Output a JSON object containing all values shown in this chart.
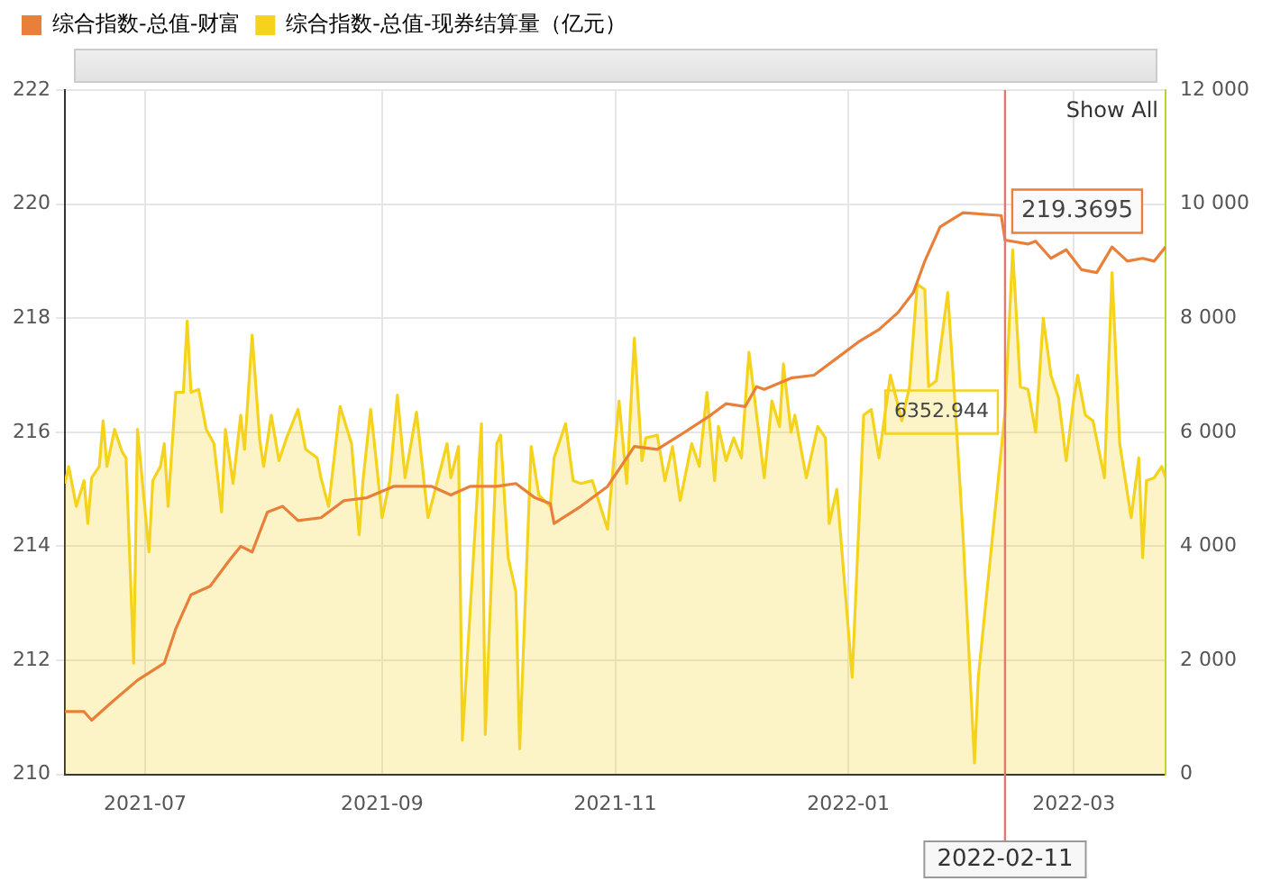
{
  "chart_data": {
    "type": "line",
    "legend": "top left",
    "grid": true,
    "marker": "none",
    "line_style": "solid",
    "xlim": [
      "2021-06-10",
      "2022-03-25"
    ],
    "xticks": [
      {
        "value": "2021-07",
        "label": "2021-07"
      },
      {
        "value": "2021-09",
        "label": "2021-09"
      },
      {
        "value": "2021-11",
        "label": "2021-11"
      },
      {
        "value": "2022-01",
        "label": "2022-01"
      },
      {
        "value": "2022-03",
        "label": "2022-03"
      }
    ],
    "ylim": [
      210,
      222
    ],
    "yticks": [
      210,
      212,
      214,
      216,
      218,
      220,
      222
    ],
    "y2lim": [
      0,
      12000
    ],
    "y2ticks": [
      0,
      {
        "value": 2000,
        "label": "2 000"
      },
      {
        "value": 4000,
        "label": "4 000"
      },
      {
        "value": 6000,
        "label": "6 000"
      },
      {
        "value": 8000,
        "label": "8 000"
      },
      {
        "value": 10000,
        "label": "10 000"
      },
      {
        "value": 12000,
        "label": "12 000"
      }
    ],
    "ref_lines": [
      {
        "axis": "x",
        "value": "2022-02-11",
        "label": "2022-02-11",
        "color": "#e07a6e"
      }
    ],
    "annotations": [
      "Show All"
    ],
    "series": [
      {
        "name": "综合指数-总值-现券结算量（亿元）",
        "type": "area",
        "axis": "y2",
        "color": "#f5d31c",
        "x": [
          "2021-06-10",
          "2021-06-11",
          "2021-06-13",
          "2021-06-15",
          "2021-06-16",
          "2021-06-17",
          "2021-06-19",
          "2021-06-20",
          "2021-06-21",
          "2021-06-23",
          "2021-06-25",
          "2021-06-26",
          "2021-06-28",
          "2021-06-29",
          "2021-07-02",
          "2021-07-03",
          "2021-07-05",
          "2021-07-06",
          "2021-07-07",
          "2021-07-09",
          "2021-07-11",
          "2021-07-12",
          "2021-07-13",
          "2021-07-15",
          "2021-07-17",
          "2021-07-19",
          "2021-07-21",
          "2021-07-22",
          "2021-07-24",
          "2021-07-26",
          "2021-07-27",
          "2021-07-29",
          "2021-07-31",
          "2021-08-01",
          "2021-08-03",
          "2021-08-05",
          "2021-08-07",
          "2021-08-10",
          "2021-08-12",
          "2021-08-15",
          "2021-08-16",
          "2021-08-18",
          "2021-08-21",
          "2021-08-24",
          "2021-08-26",
          "2021-08-27",
          "2021-08-29",
          "2021-08-30",
          "2021-09-01",
          "2021-09-03",
          "2021-09-05",
          "2021-09-07",
          "2021-09-10",
          "2021-09-13",
          "2021-09-18",
          "2021-09-19",
          "2021-09-21",
          "2021-09-22",
          "2021-09-27",
          "2021-09-28",
          "2021-10-01",
          "2021-10-02",
          "2021-10-04",
          "2021-10-06",
          "2021-10-07",
          "2021-10-10",
          "2021-10-12",
          "2021-10-15",
          "2021-10-16",
          "2021-10-19",
          "2021-10-21",
          "2021-10-23",
          "2021-10-26",
          "2021-10-30",
          "2021-11-02",
          "2021-11-04",
          "2021-11-06",
          "2021-11-08",
          "2021-11-09",
          "2021-11-12",
          "2021-11-14",
          "2021-11-16",
          "2021-11-18",
          "2021-11-21",
          "2021-11-23",
          "2021-11-25",
          "2021-11-27",
          "2021-11-28",
          "2021-11-30",
          "2021-12-02",
          "2021-12-04",
          "2021-12-06",
          "2021-12-10",
          "2021-12-12",
          "2021-12-14",
          "2021-12-15",
          "2021-12-17",
          "2021-12-18",
          "2021-12-21",
          "2021-12-24",
          "2021-12-26",
          "2021-12-27",
          "2021-12-29",
          "2022-01-02",
          "2022-01-05",
          "2022-01-07",
          "2022-01-09",
          "2022-01-12",
          "2022-01-15",
          "2022-01-17",
          "2022-01-19",
          "2022-01-21",
          "2022-01-22",
          "2022-01-24",
          "2022-01-27",
          "2022-01-29",
          "2022-01-31",
          "2022-02-03",
          "2022-02-04",
          "2022-02-11",
          "2022-02-13",
          "2022-02-15",
          "2022-02-17",
          "2022-02-19",
          "2022-02-21",
          "2022-02-23",
          "2022-02-25",
          "2022-02-27",
          "2022-03-01",
          "2022-03-02",
          "2022-03-04",
          "2022-03-06",
          "2022-03-09",
          "2022-03-11",
          "2022-03-13",
          "2022-03-16",
          "2022-03-18",
          "2022-03-19",
          "2022-03-20",
          "2022-03-22",
          "2022-03-24",
          "2022-03-25"
        ],
        "values": [
          5100,
          5400,
          4700,
          5150,
          4400,
          5200,
          5400,
          6200,
          5400,
          6050,
          5650,
          5550,
          1950,
          6050,
          3900,
          5150,
          5400,
          5800,
          4700,
          6700,
          6700,
          7950,
          6700,
          6750,
          6050,
          5800,
          4600,
          6050,
          5100,
          6300,
          5700,
          7700,
          5850,
          5400,
          6300,
          5500,
          5900,
          6400,
          5700,
          5550,
          5200,
          4700,
          6450,
          5800,
          4200,
          5150,
          6400,
          5800,
          4500,
          5150,
          6650,
          5200,
          6350,
          4500,
          5800,
          5200,
          5750,
          600,
          6150,
          700,
          5800,
          5950,
          3800,
          3200,
          450,
          5750,
          4900,
          4700,
          5550,
          6150,
          5150,
          5100,
          5150,
          4300,
          6550,
          5100,
          7650,
          5500,
          5900,
          5950,
          5150,
          5750,
          4800,
          5800,
          5400,
          6700,
          5150,
          6100,
          5500,
          5900,
          5550,
          7400,
          5200,
          6550,
          6100,
          7200,
          6000,
          6300,
          5200,
          6100,
          5900,
          4400,
          5000,
          1700,
          6300,
          6400,
          5550,
          7000,
          6200,
          6800,
          8600,
          8500,
          6800,
          6900,
          8450,
          6400,
          4200,
          200,
          1700,
          6352.944,
          9200,
          6800,
          6750,
          6000,
          8000,
          7000,
          6600,
          5500,
          6600,
          7000,
          6300,
          6200,
          5200,
          8800,
          5800,
          4500,
          5550,
          3800,
          5150,
          5200,
          5400,
          5200
        ],
        "value_labels": [
          null,
          null,
          null,
          null,
          null,
          null,
          null,
          null,
          null,
          null,
          null,
          null,
          null,
          null,
          null,
          null,
          null,
          null,
          null,
          null,
          null,
          null,
          null,
          null,
          null,
          null,
          null,
          null,
          null,
          null,
          null,
          null,
          null,
          null,
          null,
          null,
          null,
          null,
          null,
          null,
          null,
          null,
          null,
          null,
          null,
          null,
          null,
          null,
          null,
          null,
          null,
          null,
          null,
          null,
          null,
          null,
          null,
          null,
          null,
          null,
          null,
          null,
          null,
          null,
          null,
          null,
          null,
          null,
          null,
          null,
          null,
          null,
          null,
          null,
          null,
          null,
          null,
          null,
          null,
          null,
          null,
          null,
          null,
          null,
          null,
          null,
          null,
          null,
          null,
          null,
          null,
          null,
          null,
          null,
          null,
          null,
          null,
          null,
          null,
          null,
          null,
          null,
          null,
          null,
          null,
          null,
          null,
          null,
          null,
          null,
          null,
          null,
          null,
          null,
          null,
          null,
          null,
          null,
          null,
          "6352.944",
          null,
          null,
          null,
          null,
          null,
          null,
          null,
          null,
          null,
          null,
          null,
          null,
          null,
          null,
          null,
          null,
          null,
          null,
          null,
          null,
          null,
          null
        ]
      },
      {
        "name": "综合指数-总值-财富",
        "type": "line",
        "color": "#e8803a",
        "x": [
          "2021-06-10",
          "2021-06-15",
          "2021-06-17",
          "2021-06-22",
          "2021-06-29",
          "2021-07-06",
          "2021-07-09",
          "2021-07-13",
          "2021-07-18",
          "2021-07-23",
          "2021-07-26",
          "2021-07-29",
          "2021-08-02",
          "2021-08-06",
          "2021-08-10",
          "2021-08-16",
          "2021-08-22",
          "2021-08-28",
          "2021-09-04",
          "2021-09-09",
          "2021-09-14",
          "2021-09-19",
          "2021-09-24",
          "2021-10-01",
          "2021-10-06",
          "2021-10-11",
          "2021-10-15",
          "2021-10-16",
          "2021-10-23",
          "2021-10-30",
          "2021-11-06",
          "2021-11-12",
          "2021-11-18",
          "2021-11-26",
          "2021-11-30",
          "2021-12-05",
          "2021-12-08",
          "2021-12-10",
          "2021-12-17",
          "2021-12-23",
          "2021-12-30",
          "2022-01-04",
          "2022-01-09",
          "2022-01-14",
          "2022-01-18",
          "2022-01-21",
          "2022-01-25",
          "2022-01-31",
          "2022-02-10",
          "2022-02-11",
          "2022-02-17",
          "2022-02-19",
          "2022-02-23",
          "2022-02-27",
          "2022-03-03",
          "2022-03-07",
          "2022-03-11",
          "2022-03-15",
          "2022-03-19",
          "2022-03-22",
          "2022-03-25"
        ],
        "values": [
          211.1,
          211.1,
          210.95,
          211.25,
          211.65,
          211.95,
          212.55,
          213.15,
          213.3,
          213.75,
          214.0,
          213.9,
          214.6,
          214.7,
          214.45,
          214.5,
          214.8,
          214.85,
          215.05,
          215.05,
          215.05,
          214.9,
          215.05,
          215.05,
          215.1,
          214.85,
          214.75,
          214.4,
          214.7,
          215.05,
          215.75,
          215.7,
          215.95,
          216.3,
          216.5,
          216.45,
          216.8,
          216.75,
          216.95,
          217.0,
          217.35,
          217.6,
          217.8,
          218.1,
          218.45,
          219.0,
          219.6,
          219.85,
          219.8,
          219.3695,
          219.3,
          219.35,
          219.05,
          219.2,
          218.85,
          218.8,
          219.25,
          219.0,
          219.05,
          219.0,
          219.25
        ],
        "value_labels": [
          null,
          null,
          null,
          null,
          null,
          null,
          null,
          null,
          null,
          null,
          null,
          null,
          null,
          null,
          null,
          null,
          null,
          null,
          null,
          null,
          null,
          null,
          null,
          null,
          null,
          null,
          null,
          null,
          null,
          null,
          null,
          null,
          null,
          null,
          null,
          null,
          null,
          null,
          null,
          null,
          null,
          null,
          null,
          null,
          null,
          null,
          null,
          null,
          null,
          "219.3695",
          null,
          null,
          null,
          null,
          null,
          null,
          null,
          null,
          null,
          null,
          null
        ]
      }
    ]
  }
}
